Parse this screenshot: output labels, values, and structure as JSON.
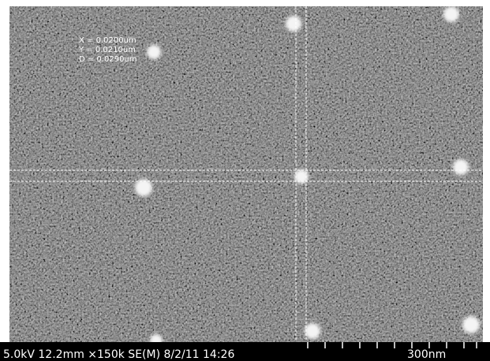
{
  "overlay": {
    "x": "X = 0.0200um",
    "y": "Y = 0.0210um",
    "d": "D = 0.0290um"
  },
  "footer": {
    "info": "5.0kV 12.2mm ×150k SE(M) 8/2/11 14:26",
    "scale": "300nm"
  }
}
